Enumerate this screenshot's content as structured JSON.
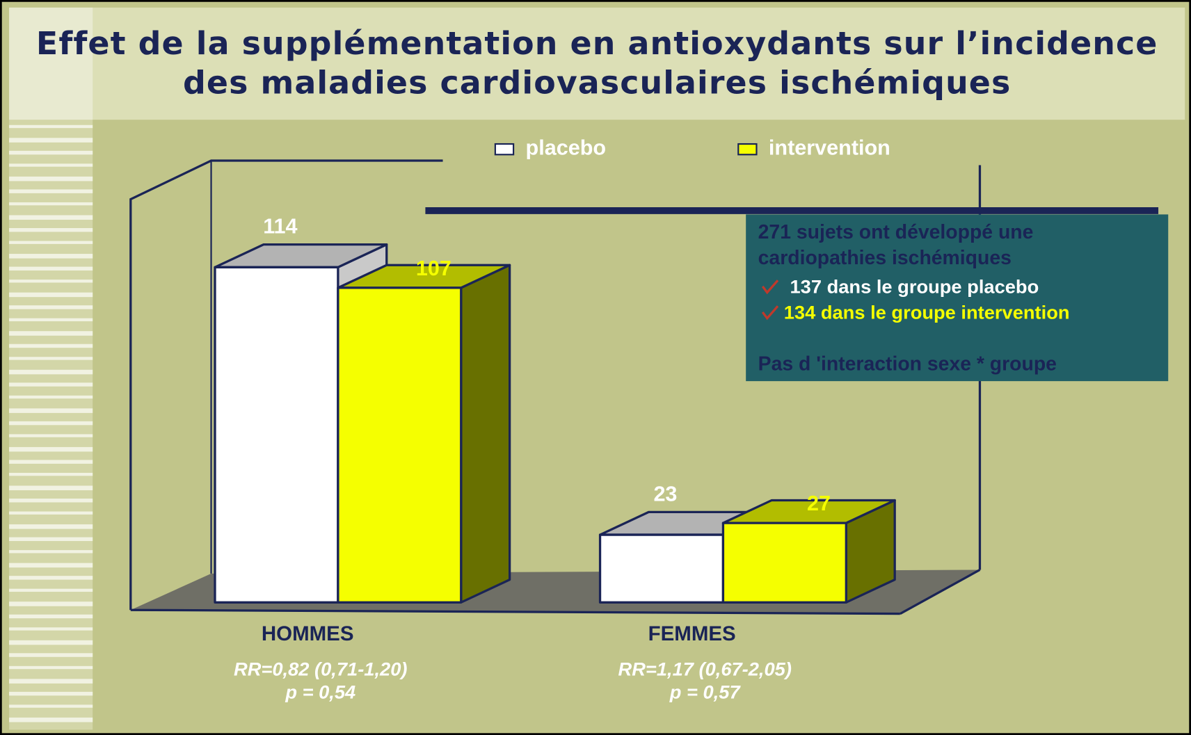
{
  "chart_data": {
    "type": "bar3d",
    "title": [
      "Effet de la supplémentation en antioxydants sur l’incidence",
      "des maladies cardiovasculaires ischémiques"
    ],
    "categories": [
      "HOMMES",
      "FEMMES"
    ],
    "series": [
      {
        "name": "placebo",
        "color": "#ffffff",
        "values": [
          114,
          23
        ]
      },
      {
        "name": "intervention",
        "color": "#f5ff00",
        "values": [
          107,
          27
        ]
      }
    ],
    "category_notes": [
      [
        "RR=0,82 (0,71-1,20)",
        "p = 0,54"
      ],
      [
        "RR=1,17 (0,67-2,05)",
        "p = 0,57"
      ]
    ],
    "info_box": [
      "271 sujets ont développé une",
      "cardiopathies ischémiques",
      "137 dans le groupe placebo",
      "134 dans le groupe intervention",
      "Pas d 'interaction sexe * groupe"
    ]
  }
}
